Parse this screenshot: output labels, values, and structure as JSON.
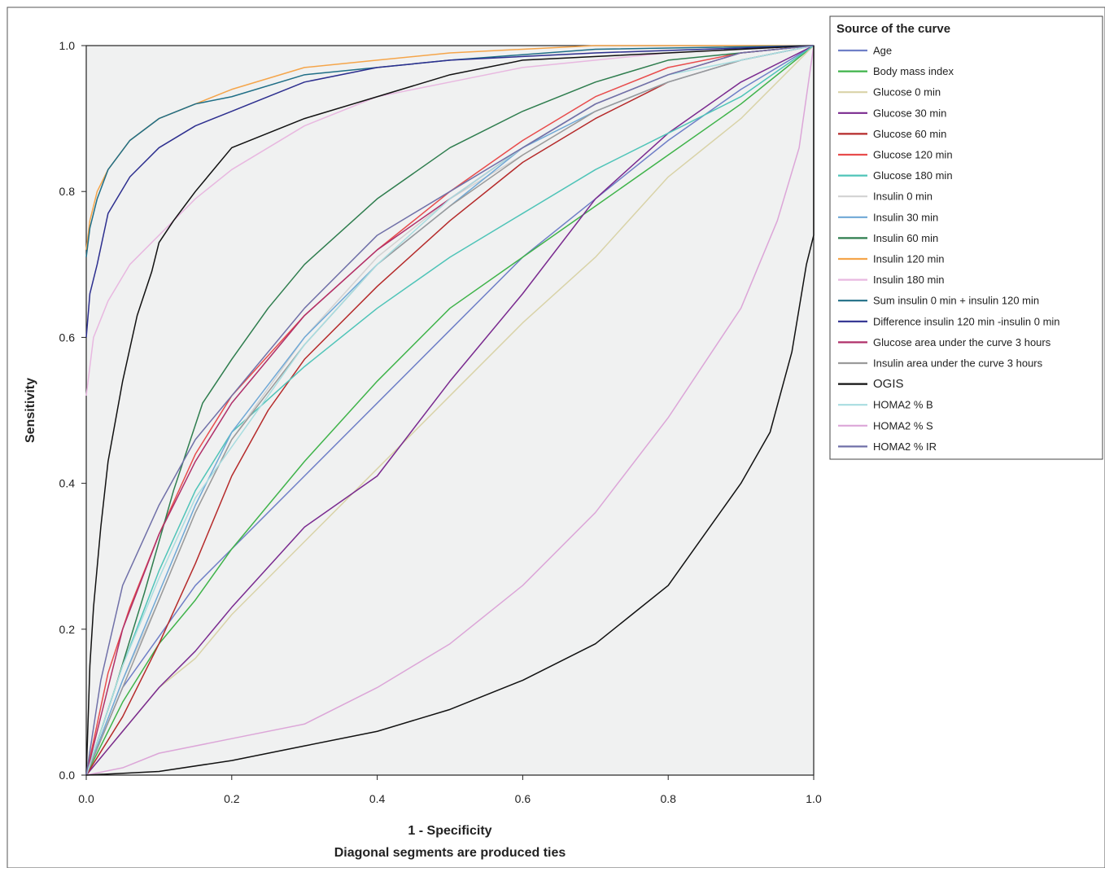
{
  "chart_data": {
    "type": "line",
    "title": "",
    "xlabel": "1 - Specificity",
    "xlabel_note": "Diagonal segments are produced ties",
    "ylabel": "Sensitivity",
    "xlim": [
      0,
      1
    ],
    "ylim": [
      0,
      1
    ],
    "x_ticks": [
      "0.0",
      "0.2",
      "0.4",
      "0.6",
      "0.8",
      "1.0"
    ],
    "y_ticks": [
      "0.0",
      "0.2",
      "0.4",
      "0.6",
      "0.8",
      "1.0"
    ],
    "grid": false,
    "plot_background": "#f0f1f1",
    "legend": {
      "title": "Source of the curve",
      "placement": "top-right outside"
    },
    "series": [
      {
        "name": "Age",
        "color": "#6f7fc7",
        "points": [
          [
            0,
            0
          ],
          [
            0.05,
            0.12
          ],
          [
            0.1,
            0.19
          ],
          [
            0.15,
            0.26
          ],
          [
            0.2,
            0.31
          ],
          [
            0.3,
            0.41
          ],
          [
            0.4,
            0.51
          ],
          [
            0.5,
            0.61
          ],
          [
            0.6,
            0.71
          ],
          [
            0.7,
            0.79
          ],
          [
            0.8,
            0.87
          ],
          [
            0.9,
            0.94
          ],
          [
            1,
            1
          ]
        ]
      },
      {
        "name": "Body mass index",
        "color": "#3fb34a",
        "points": [
          [
            0,
            0
          ],
          [
            0.05,
            0.1
          ],
          [
            0.1,
            0.18
          ],
          [
            0.15,
            0.24
          ],
          [
            0.2,
            0.31
          ],
          [
            0.3,
            0.43
          ],
          [
            0.4,
            0.54
          ],
          [
            0.5,
            0.64
          ],
          [
            0.6,
            0.71
          ],
          [
            0.7,
            0.78
          ],
          [
            0.8,
            0.85
          ],
          [
            0.9,
            0.92
          ],
          [
            1,
            1
          ]
        ]
      },
      {
        "name": "Glucose 0 min",
        "color": "#d9d3a8",
        "points": [
          [
            0,
            0
          ],
          [
            0.05,
            0.06
          ],
          [
            0.1,
            0.12
          ],
          [
            0.15,
            0.16
          ],
          [
            0.2,
            0.22
          ],
          [
            0.3,
            0.32
          ],
          [
            0.4,
            0.42
          ],
          [
            0.5,
            0.52
          ],
          [
            0.6,
            0.62
          ],
          [
            0.7,
            0.71
          ],
          [
            0.8,
            0.82
          ],
          [
            0.9,
            0.9
          ],
          [
            1,
            1
          ]
        ]
      },
      {
        "name": "Glucose 30 min",
        "color": "#7a2a8f",
        "points": [
          [
            0,
            0
          ],
          [
            0.05,
            0.06
          ],
          [
            0.1,
            0.12
          ],
          [
            0.15,
            0.17
          ],
          [
            0.2,
            0.23
          ],
          [
            0.3,
            0.34
          ],
          [
            0.4,
            0.41
          ],
          [
            0.5,
            0.54
          ],
          [
            0.6,
            0.66
          ],
          [
            0.7,
            0.79
          ],
          [
            0.8,
            0.88
          ],
          [
            0.9,
            0.95
          ],
          [
            1,
            1
          ]
        ]
      },
      {
        "name": "Glucose 60 min",
        "color": "#b52a2a",
        "points": [
          [
            0,
            0
          ],
          [
            0.05,
            0.08
          ],
          [
            0.1,
            0.18
          ],
          [
            0.15,
            0.29
          ],
          [
            0.2,
            0.41
          ],
          [
            0.25,
            0.5
          ],
          [
            0.3,
            0.57
          ],
          [
            0.4,
            0.67
          ],
          [
            0.5,
            0.76
          ],
          [
            0.6,
            0.84
          ],
          [
            0.7,
            0.9
          ],
          [
            0.8,
            0.95
          ],
          [
            0.9,
            0.98
          ],
          [
            1,
            1
          ]
        ]
      },
      {
        "name": "Glucose 120 min",
        "color": "#e84c4c",
        "points": [
          [
            0,
            0
          ],
          [
            0.03,
            0.14
          ],
          [
            0.06,
            0.23
          ],
          [
            0.1,
            0.33
          ],
          [
            0.15,
            0.44
          ],
          [
            0.2,
            0.52
          ],
          [
            0.3,
            0.63
          ],
          [
            0.4,
            0.72
          ],
          [
            0.5,
            0.8
          ],
          [
            0.6,
            0.87
          ],
          [
            0.7,
            0.93
          ],
          [
            0.8,
            0.97
          ],
          [
            0.9,
            0.99
          ],
          [
            1,
            1
          ]
        ]
      },
      {
        "name": "Glucose 180 min",
        "color": "#4fc4b8",
        "points": [
          [
            0,
            0
          ],
          [
            0.05,
            0.15
          ],
          [
            0.1,
            0.28
          ],
          [
            0.15,
            0.39
          ],
          [
            0.2,
            0.47
          ],
          [
            0.3,
            0.56
          ],
          [
            0.4,
            0.64
          ],
          [
            0.5,
            0.71
          ],
          [
            0.6,
            0.77
          ],
          [
            0.7,
            0.83
          ],
          [
            0.8,
            0.88
          ],
          [
            0.9,
            0.93
          ],
          [
            1,
            1
          ]
        ]
      },
      {
        "name": "Insulin 0 min",
        "color": "#d2d2d2",
        "points": [
          [
            0,
            0
          ],
          [
            0.05,
            0.13
          ],
          [
            0.1,
            0.24
          ],
          [
            0.15,
            0.36
          ],
          [
            0.2,
            0.46
          ],
          [
            0.3,
            0.6
          ],
          [
            0.4,
            0.71
          ],
          [
            0.5,
            0.79
          ],
          [
            0.6,
            0.85
          ],
          [
            0.7,
            0.91
          ],
          [
            0.8,
            0.95
          ],
          [
            0.9,
            0.98
          ],
          [
            1,
            1
          ]
        ]
      },
      {
        "name": "Insulin 30 min",
        "color": "#6fa8d6",
        "points": [
          [
            0,
            0
          ],
          [
            0.05,
            0.13
          ],
          [
            0.1,
            0.25
          ],
          [
            0.15,
            0.37
          ],
          [
            0.2,
            0.47
          ],
          [
            0.3,
            0.6
          ],
          [
            0.4,
            0.7
          ],
          [
            0.5,
            0.78
          ],
          [
            0.6,
            0.86
          ],
          [
            0.7,
            0.91
          ],
          [
            0.8,
            0.95
          ],
          [
            0.9,
            0.98
          ],
          [
            1,
            1
          ]
        ]
      },
      {
        "name": "Insulin 60 min",
        "color": "#2e7d4e",
        "points": [
          [
            0,
            0
          ],
          [
            0.04,
            0.12
          ],
          [
            0.08,
            0.25
          ],
          [
            0.12,
            0.39
          ],
          [
            0.16,
            0.51
          ],
          [
            0.2,
            0.57
          ],
          [
            0.25,
            0.64
          ],
          [
            0.3,
            0.7
          ],
          [
            0.4,
            0.79
          ],
          [
            0.5,
            0.86
          ],
          [
            0.6,
            0.91
          ],
          [
            0.7,
            0.95
          ],
          [
            0.8,
            0.98
          ],
          [
            0.9,
            0.99
          ],
          [
            1,
            1
          ]
        ]
      },
      {
        "name": "Insulin 120 min",
        "color": "#f5a54a",
        "points": [
          [
            0,
            0.72
          ],
          [
            0.005,
            0.76
          ],
          [
            0.015,
            0.8
          ],
          [
            0.03,
            0.83
          ],
          [
            0.06,
            0.87
          ],
          [
            0.1,
            0.9
          ],
          [
            0.15,
            0.92
          ],
          [
            0.2,
            0.94
          ],
          [
            0.3,
            0.97
          ],
          [
            0.4,
            0.98
          ],
          [
            0.5,
            0.99
          ],
          [
            0.7,
            1
          ],
          [
            1,
            1
          ]
        ]
      },
      {
        "name": "Insulin 180 min",
        "color": "#e8b8e0",
        "points": [
          [
            0,
            0.52
          ],
          [
            0.01,
            0.6
          ],
          [
            0.03,
            0.65
          ],
          [
            0.06,
            0.7
          ],
          [
            0.1,
            0.74
          ],
          [
            0.15,
            0.79
          ],
          [
            0.2,
            0.83
          ],
          [
            0.3,
            0.89
          ],
          [
            0.4,
            0.93
          ],
          [
            0.5,
            0.95
          ],
          [
            0.6,
            0.97
          ],
          [
            0.8,
            0.99
          ],
          [
            1,
            1
          ]
        ]
      },
      {
        "name": "Sum insulin 0 min + insulin 120 min",
        "color": "#1f6e86",
        "points": [
          [
            0,
            0.71
          ],
          [
            0.005,
            0.75
          ],
          [
            0.015,
            0.79
          ],
          [
            0.03,
            0.83
          ],
          [
            0.06,
            0.87
          ],
          [
            0.1,
            0.9
          ],
          [
            0.15,
            0.92
          ],
          [
            0.2,
            0.93
          ],
          [
            0.3,
            0.96
          ],
          [
            0.4,
            0.97
          ],
          [
            0.5,
            0.98
          ],
          [
            0.7,
            0.995
          ],
          [
            1,
            1
          ]
        ]
      },
      {
        "name": "Difference  insulin 120 min -insulin 0 min",
        "color": "#2d2f8f",
        "points": [
          [
            0,
            0.6
          ],
          [
            0.005,
            0.66
          ],
          [
            0.015,
            0.7
          ],
          [
            0.03,
            0.77
          ],
          [
            0.06,
            0.82
          ],
          [
            0.1,
            0.86
          ],
          [
            0.15,
            0.89
          ],
          [
            0.2,
            0.91
          ],
          [
            0.3,
            0.95
          ],
          [
            0.4,
            0.97
          ],
          [
            0.5,
            0.98
          ],
          [
            0.7,
            0.99
          ],
          [
            1,
            1
          ]
        ]
      },
      {
        "name": "Glucose area under the curve 3 hours",
        "color": "#b0306a",
        "points": [
          [
            0,
            0
          ],
          [
            0.05,
            0.2
          ],
          [
            0.1,
            0.33
          ],
          [
            0.15,
            0.43
          ],
          [
            0.2,
            0.51
          ],
          [
            0.3,
            0.63
          ],
          [
            0.4,
            0.72
          ],
          [
            0.5,
            0.79
          ],
          [
            0.6,
            0.86
          ],
          [
            0.7,
            0.92
          ],
          [
            0.8,
            0.96
          ],
          [
            0.9,
            0.99
          ],
          [
            1,
            1
          ]
        ]
      },
      {
        "name": "Insulin area under the curve 3 hours",
        "color": "#9a9a9a",
        "points": [
          [
            0,
            0
          ],
          [
            0.05,
            0.12
          ],
          [
            0.1,
            0.24
          ],
          [
            0.15,
            0.36
          ],
          [
            0.2,
            0.46
          ],
          [
            0.3,
            0.59
          ],
          [
            0.4,
            0.7
          ],
          [
            0.5,
            0.78
          ],
          [
            0.6,
            0.85
          ],
          [
            0.7,
            0.91
          ],
          [
            0.8,
            0.95
          ],
          [
            0.9,
            0.98
          ],
          [
            1,
            1
          ]
        ]
      },
      {
        "name": "OGIS",
        "color": "#111111",
        "points": [
          [
            0,
            0
          ],
          [
            0.005,
            0.15
          ],
          [
            0.01,
            0.23
          ],
          [
            0.02,
            0.34
          ],
          [
            0.03,
            0.43
          ],
          [
            0.05,
            0.54
          ],
          [
            0.07,
            0.63
          ],
          [
            0.09,
            0.69
          ],
          [
            0.1,
            0.73
          ],
          [
            0.12,
            0.76
          ],
          [
            0.15,
            0.8
          ],
          [
            0.2,
            0.86
          ],
          [
            0.3,
            0.9
          ],
          [
            0.4,
            0.93
          ],
          [
            0.5,
            0.96
          ],
          [
            0.6,
            0.98
          ],
          [
            0.8,
            0.99
          ],
          [
            1,
            1
          ]
        ]
      },
      {
        "name": "HOMA2 % B",
        "color": "#a8dde0",
        "points": [
          [
            0,
            0
          ],
          [
            0.05,
            0.15
          ],
          [
            0.1,
            0.27
          ],
          [
            0.15,
            0.38
          ],
          [
            0.2,
            0.45
          ],
          [
            0.3,
            0.59
          ],
          [
            0.4,
            0.7
          ],
          [
            0.5,
            0.79
          ],
          [
            0.6,
            0.86
          ],
          [
            0.7,
            0.92
          ],
          [
            0.8,
            0.96
          ],
          [
            0.9,
            0.98
          ],
          [
            1,
            1
          ]
        ]
      },
      {
        "name": "HOMA2 % S",
        "color": "#dca6d8",
        "points": [
          [
            0,
            0
          ],
          [
            0.05,
            0.01
          ],
          [
            0.1,
            0.03
          ],
          [
            0.2,
            0.05
          ],
          [
            0.3,
            0.07
          ],
          [
            0.4,
            0.12
          ],
          [
            0.5,
            0.18
          ],
          [
            0.6,
            0.26
          ],
          [
            0.7,
            0.36
          ],
          [
            0.8,
            0.49
          ],
          [
            0.9,
            0.64
          ],
          [
            0.95,
            0.76
          ],
          [
            0.98,
            0.86
          ],
          [
            1,
            1
          ]
        ]
      },
      {
        "name": "HOMA2 % IR",
        "color": "#7070a8",
        "points": [
          [
            0,
            0
          ],
          [
            0.02,
            0.13
          ],
          [
            0.05,
            0.26
          ],
          [
            0.1,
            0.37
          ],
          [
            0.15,
            0.46
          ],
          [
            0.2,
            0.52
          ],
          [
            0.3,
            0.64
          ],
          [
            0.4,
            0.74
          ],
          [
            0.5,
            0.8
          ],
          [
            0.6,
            0.86
          ],
          [
            0.7,
            0.92
          ],
          [
            0.8,
            0.96
          ],
          [
            0.9,
            0.99
          ],
          [
            1,
            1
          ]
        ]
      },
      {
        "name": "OGIS-lower",
        "legend": false,
        "color": "#111111",
        "points": [
          [
            0,
            0
          ],
          [
            0.1,
            0.005
          ],
          [
            0.2,
            0.02
          ],
          [
            0.3,
            0.04
          ],
          [
            0.4,
            0.06
          ],
          [
            0.5,
            0.09
          ],
          [
            0.6,
            0.13
          ],
          [
            0.7,
            0.18
          ],
          [
            0.75,
            0.22
          ],
          [
            0.8,
            0.26
          ],
          [
            0.85,
            0.33
          ],
          [
            0.9,
            0.4
          ],
          [
            0.94,
            0.47
          ],
          [
            0.97,
            0.58
          ],
          [
            0.99,
            0.7
          ],
          [
            1,
            0.74
          ],
          [
            1,
            1
          ]
        ]
      }
    ]
  }
}
